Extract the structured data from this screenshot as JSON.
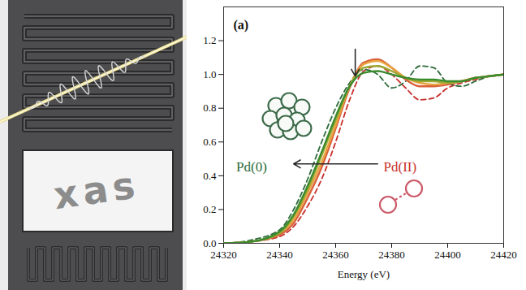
{
  "chart_data": {
    "type": "line",
    "panel_label": "(a)",
    "x_label": "Energy (eV)",
    "xlim": [
      24320,
      24420
    ],
    "xticks": [
      24320,
      24340,
      24360,
      24380,
      24400,
      24420
    ],
    "ylim": [
      0,
      1.4
    ],
    "yticks": [
      {
        "value": 0,
        "label": "0.0"
      },
      0.2,
      0.4,
      0.6,
      0.8,
      {
        "value": 1,
        "label": "1.0"
      },
      1.2
    ],
    "grid": false,
    "x": [
      24320,
      24330,
      24340,
      24345,
      24350,
      24355,
      24360,
      24365,
      24370,
      24375,
      24380,
      24385,
      24390,
      24395,
      24400,
      24405,
      24410,
      24415,
      24420
    ],
    "series": [
      {
        "color": "#c8302c",
        "line_style": "dashed",
        "values": [
          0.0,
          0.01,
          0.04,
          0.1,
          0.22,
          0.38,
          0.6,
          0.85,
          1.02,
          1.05,
          1.0,
          0.92,
          0.85,
          0.86,
          0.92,
          0.95,
          0.97,
          0.99,
          1.0
        ]
      },
      {
        "color": "#2e6b3a",
        "line_style": "dashed",
        "values": [
          0.0,
          0.02,
          0.08,
          0.2,
          0.38,
          0.6,
          0.8,
          0.95,
          1.03,
          1.0,
          0.92,
          0.96,
          1.05,
          1.04,
          0.95,
          0.93,
          0.96,
          0.99,
          1.0
        ]
      },
      {
        "color": "#d9603b",
        "line_style": "solid",
        "values": [
          0.0,
          0.01,
          0.05,
          0.12,
          0.27,
          0.45,
          0.68,
          0.92,
          1.07,
          1.09,
          1.04,
          0.97,
          0.93,
          0.93,
          0.94,
          0.96,
          0.98,
          0.99,
          1.0
        ]
      },
      {
        "color": "#e8a33d",
        "line_style": "solid",
        "values": [
          0.0,
          0.01,
          0.06,
          0.14,
          0.3,
          0.48,
          0.7,
          0.93,
          1.06,
          1.08,
          1.04,
          0.98,
          0.95,
          0.94,
          0.95,
          0.96,
          0.98,
          0.99,
          1.0
        ]
      },
      {
        "color": "#9aa832",
        "line_style": "solid",
        "values": [
          0.0,
          0.01,
          0.06,
          0.16,
          0.32,
          0.52,
          0.73,
          0.93,
          1.04,
          1.05,
          1.02,
          0.98,
          0.96,
          0.96,
          0.95,
          0.96,
          0.98,
          0.99,
          1.0
        ]
      },
      {
        "color": "#3a8a2e",
        "line_style": "solid",
        "values": [
          0.0,
          0.01,
          0.07,
          0.17,
          0.34,
          0.54,
          0.75,
          0.93,
          1.01,
          1.02,
          1.0,
          0.98,
          0.97,
          0.97,
          0.96,
          0.96,
          0.98,
          0.99,
          1.0
        ]
      }
    ],
    "annotations": [
      {
        "text": "Pd(0)",
        "x": 24330,
        "y": 0.45,
        "color": "#2e6b3a"
      },
      {
        "text": "Pd(II)",
        "x": 24383,
        "y": 0.45,
        "color": "#c8302c"
      }
    ],
    "arrows": [
      {
        "x1": 24375,
        "y1": 0.47,
        "x2": 24345,
        "y2": 0.47
      },
      {
        "x1": 24367,
        "y1": 1.15,
        "x2": 24367,
        "y2": 0.99
      }
    ]
  },
  "illustration": {
    "text": "xas"
  }
}
